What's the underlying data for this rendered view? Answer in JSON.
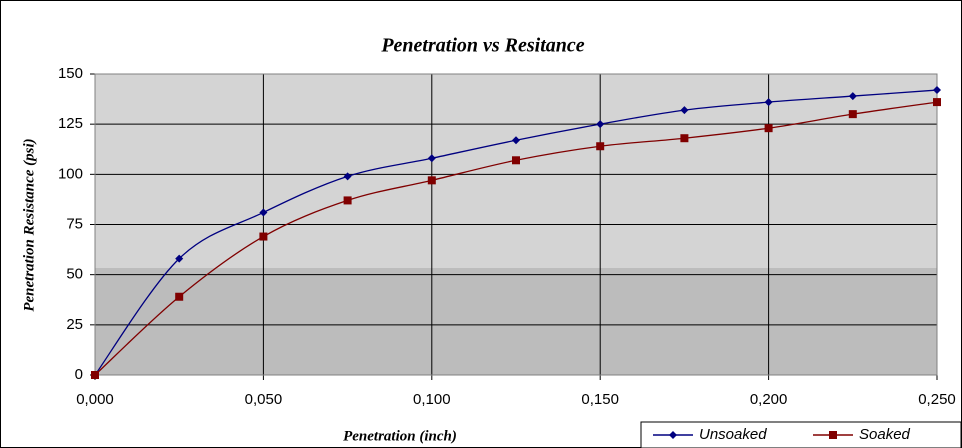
{
  "chart_data": {
    "type": "line",
    "title": "Penetration vs Resitance",
    "x_label": "Penetration (inch)",
    "y_label": "Penetration Resistance (psi)",
    "x": [
      0,
      0.025,
      0.05,
      0.075,
      0.1,
      0.125,
      0.15,
      0.175,
      0.2,
      0.225,
      0.25
    ],
    "series": [
      {
        "name": "Unsoaked",
        "color": "#000080",
        "marker": "diamond",
        "values": [
          0,
          58,
          81,
          99,
          108,
          117,
          125,
          132,
          136,
          139,
          142
        ]
      },
      {
        "name": "Soaked",
        "color": "#800000",
        "marker": "square",
        "values": [
          0,
          39,
          69,
          87,
          97,
          107,
          114,
          118,
          123,
          130,
          136
        ]
      }
    ],
    "xlim": [
      0,
      0.25
    ],
    "xticks": [
      {
        "value": 0,
        "label": "0,000"
      },
      {
        "value": 0.05,
        "label": "0,050"
      },
      {
        "value": 0.1,
        "label": "0,100"
      },
      {
        "value": 0.15,
        "label": "0,150"
      },
      {
        "value": 0.2,
        "label": "0,200"
      },
      {
        "value": 0.25,
        "label": "0,250"
      }
    ],
    "ylim": [
      0,
      150
    ],
    "yticks": [
      0,
      25,
      50,
      75,
      100,
      125,
      150
    ],
    "grid": true,
    "legend": "bottom-right"
  }
}
